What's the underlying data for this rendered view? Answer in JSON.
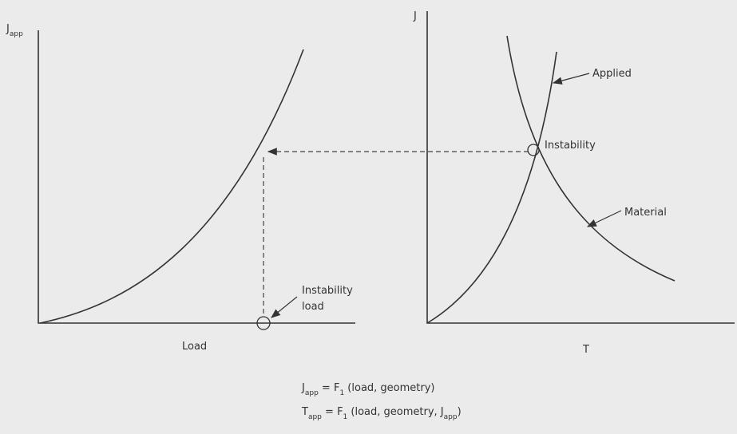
{
  "left_plot": {
    "y_label": {
      "main": "J",
      "sub": "app"
    },
    "x_label": "Load",
    "annotation": [
      "Instability",
      "load"
    ]
  },
  "right_plot": {
    "y_label": "J",
    "x_label": "T",
    "applied_label": "Applied",
    "instability_label": "Instability",
    "material_label": "Material"
  },
  "equations": [
    {
      "parts": [
        {
          "text": "J"
        },
        {
          "sub": "app"
        },
        {
          "text": " = F"
        },
        {
          "sub": "1"
        },
        {
          "text": " (load, geometry)"
        }
      ]
    },
    {
      "parts": [
        {
          "text": "T"
        },
        {
          "sub": "app"
        },
        {
          "text": " = F"
        },
        {
          "sub": "1"
        },
        {
          "text": " (load, geometry, J"
        },
        {
          "sub": "app"
        },
        {
          "text": ")"
        }
      ]
    }
  ]
}
